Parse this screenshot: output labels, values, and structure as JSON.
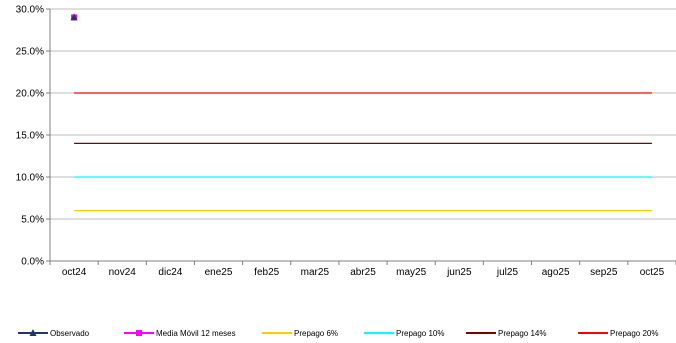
{
  "chart_data": {
    "type": "line",
    "categories": [
      "oct24",
      "nov24",
      "dic24",
      "ene25",
      "feb25",
      "mar25",
      "abr25",
      "may25",
      "jun25",
      "jul25",
      "ago25",
      "sep25",
      "oct25"
    ],
    "ylim": [
      0,
      30
    ],
    "y_ticks": [
      "0.0%",
      "5.0%",
      "10.0%",
      "15.0%",
      "20.0%",
      "25.0%",
      "30.0%"
    ],
    "y_tick_values": [
      0,
      5,
      10,
      15,
      20,
      25,
      30
    ],
    "grid": true,
    "legend_position": "bottom",
    "series": [
      {
        "name": "Observado",
        "color": "#1F3864",
        "marker": "triangle",
        "values": [
          29.0,
          null,
          null,
          null,
          null,
          null,
          null,
          null,
          null,
          null,
          null,
          null,
          null
        ]
      },
      {
        "name": "Media Móvil 12 meses",
        "color": "#FF00FF",
        "marker": "square",
        "values": [
          29.0,
          null,
          null,
          null,
          null,
          null,
          null,
          null,
          null,
          null,
          null,
          null,
          null
        ]
      },
      {
        "name": "Prepago 6%",
        "color": "#FFCC00",
        "marker": "none",
        "values": [
          6,
          6,
          6,
          6,
          6,
          6,
          6,
          6,
          6,
          6,
          6,
          6,
          6
        ]
      },
      {
        "name": "Prepago 10%",
        "color": "#00FFFF",
        "marker": "none",
        "values": [
          10,
          10,
          10,
          10,
          10,
          10,
          10,
          10,
          10,
          10,
          10,
          10,
          10
        ]
      },
      {
        "name": "Prepago 14%",
        "color": "#800000",
        "marker": "none",
        "values": [
          14,
          14,
          14,
          14,
          14,
          14,
          14,
          14,
          14,
          14,
          14,
          14,
          14
        ]
      },
      {
        "name": "Prepago 20%",
        "color": "#FF0000",
        "marker": "none",
        "values": [
          20,
          20,
          20,
          20,
          20,
          20,
          20,
          20,
          20,
          20,
          20,
          20,
          20
        ]
      }
    ]
  }
}
